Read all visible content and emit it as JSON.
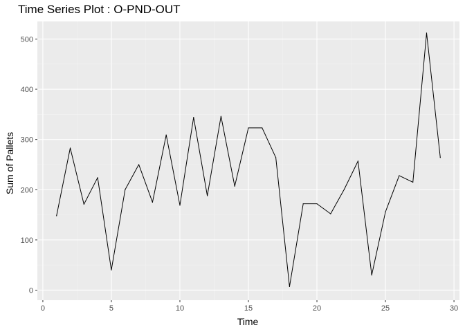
{
  "chart_data": {
    "type": "line",
    "title": "Time Series Plot : O-PND-OUT",
    "xlabel": "Time",
    "ylabel": "Sum of Pallets",
    "xlim": [
      -0.4,
      30.4
    ],
    "ylim": [
      -20,
      535
    ],
    "x_ticks": [
      0,
      5,
      10,
      15,
      20,
      25,
      30
    ],
    "y_ticks": [
      0,
      100,
      200,
      300,
      400,
      500
    ],
    "grid": true,
    "series": [
      {
        "color": "#000000",
        "x": [
          1,
          2,
          3,
          4,
          5,
          6,
          7,
          8,
          9,
          10,
          11,
          12,
          13,
          14,
          15,
          16,
          17,
          18,
          19,
          20,
          21,
          22,
          23,
          24,
          25,
          26,
          27,
          28,
          29
        ],
        "values": [
          148,
          283,
          171,
          224,
          40,
          200,
          250,
          175,
          309,
          169,
          344,
          188,
          346,
          207,
          323,
          323,
          264,
          7,
          172,
          172,
          152,
          201,
          257,
          30,
          156,
          228,
          215,
          512,
          264
        ]
      }
    ]
  },
  "colors": {
    "panel_background": "#ebebeb",
    "grid_major": "#ffffff",
    "grid_minor": "#f2f2f2",
    "tick_text": "#4d4d4d"
  }
}
